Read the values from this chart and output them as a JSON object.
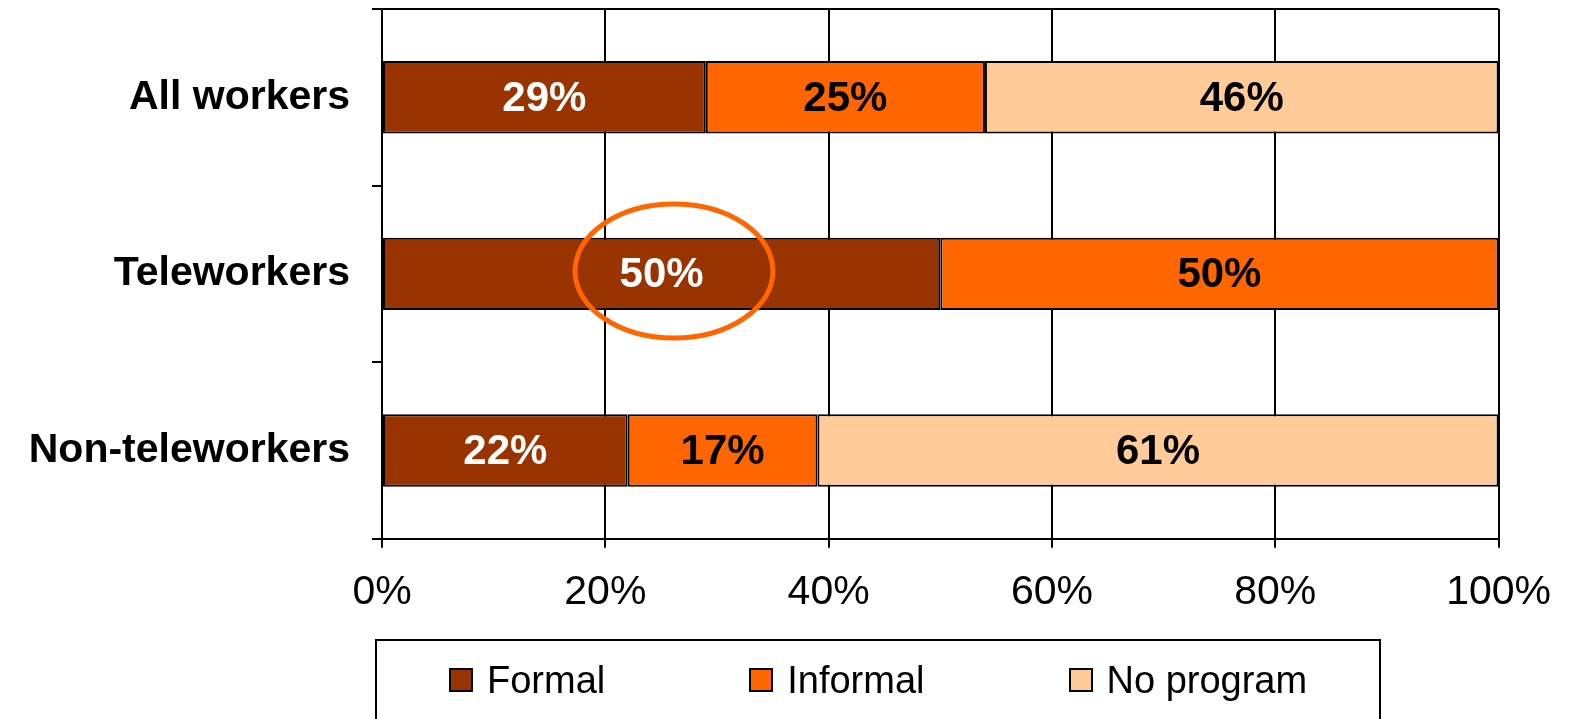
{
  "chart_data": {
    "type": "bar",
    "orientation": "horizontal",
    "stacked": true,
    "categories": [
      "All workers",
      "Teleworkers",
      "Non-teleworkers"
    ],
    "series": [
      {
        "name": "Formal",
        "color": "#993300",
        "values": [
          29,
          50,
          22
        ],
        "value_labels": [
          "29%",
          "50%",
          "22%"
        ]
      },
      {
        "name": "Informal",
        "color": "#ff6600",
        "values": [
          25,
          50,
          17
        ],
        "value_labels": [
          "25%",
          "50%",
          "17%"
        ]
      },
      {
        "name": "No program",
        "color": "#ffcc99",
        "values": [
          46,
          0,
          61
        ],
        "value_labels": [
          "46%",
          null,
          "61%"
        ]
      }
    ],
    "xlim": [
      0,
      100
    ],
    "xticks": [
      {
        "value": 0,
        "label": "0%"
      },
      {
        "value": 20,
        "label": "20%"
      },
      {
        "value": 40,
        "label": "40%"
      },
      {
        "value": 60,
        "label": "60%"
      },
      {
        "value": 80,
        "label": "80%"
      },
      {
        "value": 100,
        "label": "100%"
      }
    ],
    "grid": "x",
    "legend": "bottom"
  }
}
